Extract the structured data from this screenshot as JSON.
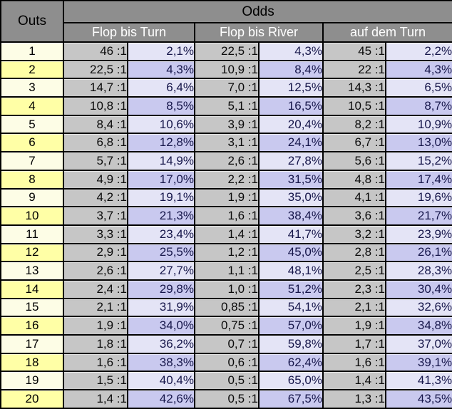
{
  "colors": {
    "header_bg": "#8e8e8e",
    "header_group_text": "#ffffff",
    "title_text": "#000000",
    "ratio_cell_bg": "#c6c6c6",
    "percent_cell_bg_odd_row": "#e4e4f6",
    "percent_cell_bg_even_row": "#c9c9ef",
    "outs_cell_bg_odd_row": "#fdfde6",
    "outs_cell_bg_even_row": "#ffffa6",
    "data_text": "#16164a",
    "border": "#000000"
  },
  "chart_data": {
    "type": "table",
    "title": "Odds",
    "corner_header": "Outs",
    "group_headers": [
      "Flop bis Turn",
      "Flop bis River",
      "auf dem Turn"
    ],
    "sub_columns_per_group": [
      "odds_ratio",
      "probability_percent"
    ],
    "rows": [
      {
        "outs": "1",
        "cells": [
          "46 :1",
          "2,1%",
          "22,5 :1",
          "4,3%",
          "45 :1",
          "2,2%"
        ]
      },
      {
        "outs": "2",
        "cells": [
          "22,5 :1",
          "4,3%",
          "10,9 :1",
          "8,4%",
          "22 :1",
          "4,3%"
        ]
      },
      {
        "outs": "3",
        "cells": [
          "14,7 :1",
          "6,4%",
          "7,0 :1",
          "12,5%",
          "14,3 :1",
          "6,5%"
        ]
      },
      {
        "outs": "4",
        "cells": [
          "10,8 :1",
          "8,5%",
          "5,1 :1",
          "16,5%",
          "10,5 :1",
          "8,7%"
        ]
      },
      {
        "outs": "5",
        "cells": [
          "8,4 :1",
          "10,6%",
          "3,9 :1",
          "20,4%",
          "8,2 :1",
          "10,9%"
        ]
      },
      {
        "outs": "6",
        "cells": [
          "6,8 :1",
          "12,8%",
          "3,1 :1",
          "24,1%",
          "6,7 :1",
          "13,0%"
        ]
      },
      {
        "outs": "7",
        "cells": [
          "5,7 :1",
          "14,9%",
          "2,6 :1",
          "27,8%",
          "5,6 :1",
          "15,2%"
        ]
      },
      {
        "outs": "8",
        "cells": [
          "4,9 :1",
          "17,0%",
          "2,2 :1",
          "31,5%",
          "4,8 :1",
          "17,4%"
        ]
      },
      {
        "outs": "9",
        "cells": [
          "4,2 :1",
          "19,1%",
          "1,9 :1",
          "35,0%",
          "4,1 :1",
          "19,6%"
        ]
      },
      {
        "outs": "10",
        "cells": [
          "3,7 :1",
          "21,3%",
          "1,6 :1",
          "38,4%",
          "3,6 :1",
          "21,7%"
        ]
      },
      {
        "outs": "11",
        "cells": [
          "3,3 :1",
          "23,4%",
          "1,4 :1",
          "41,7%",
          "3,2 :1",
          "23,9%"
        ]
      },
      {
        "outs": "12",
        "cells": [
          "2,9 :1",
          "25,5%",
          "1,2 :1",
          "45,0%",
          "2,8 :1",
          "26,1%"
        ]
      },
      {
        "outs": "13",
        "cells": [
          "2,6 :1",
          "27,7%",
          "1,1 :1",
          "48,1%",
          "2,5 :1",
          "28,3%"
        ]
      },
      {
        "outs": "14",
        "cells": [
          "2,4 :1",
          "29,8%",
          "1,0 :1",
          "51,2%",
          "2,3 :1",
          "30,4%"
        ]
      },
      {
        "outs": "15",
        "cells": [
          "2,1 :1",
          "31,9%",
          "0,85 :1",
          "54,1%",
          "2,1 :1",
          "32,6%"
        ]
      },
      {
        "outs": "16",
        "cells": [
          "1,9 :1",
          "34,0%",
          "0,75 :1",
          "57,0%",
          "1,9 :1",
          "34,8%"
        ]
      },
      {
        "outs": "17",
        "cells": [
          "1,8 :1",
          "36,2%",
          "0,7 :1",
          "59,8%",
          "1,7 :1",
          "37,0%"
        ]
      },
      {
        "outs": "18",
        "cells": [
          "1,6 :1",
          "38,3%",
          "0,6 :1",
          "62,4%",
          "1,6 :1",
          "39,1%"
        ]
      },
      {
        "outs": "19",
        "cells": [
          "1,5 :1",
          "40,4%",
          "0,5 :1",
          "65,0%",
          "1,4 :1",
          "41,3%"
        ]
      },
      {
        "outs": "20",
        "cells": [
          "1,4 :1",
          "42,6%",
          "0,5 :1",
          "67,5%",
          "1,3 :1",
          "43,5%"
        ]
      }
    ]
  }
}
